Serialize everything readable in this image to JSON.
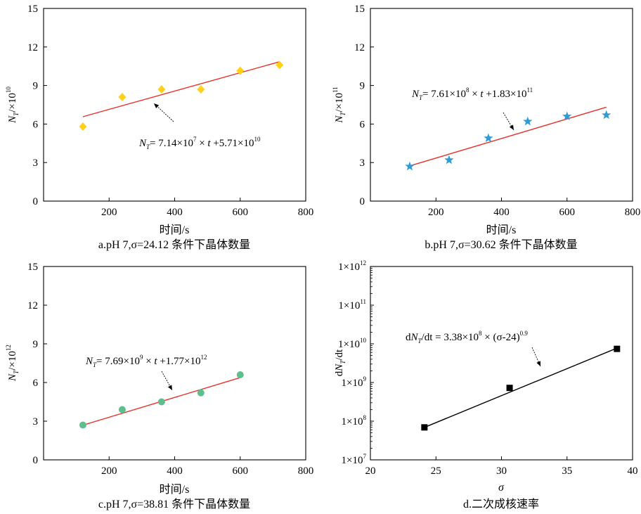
{
  "chart_data": [
    {
      "type": "scatter",
      "caption": "a.pH 7,σ=24.12 条件下晶体数量",
      "xlabel": "时间/s",
      "ylabel": {
        "base": "N",
        "sub": "T",
        "rest": "/×10",
        "sup": "10"
      },
      "xlim": [
        0,
        800
      ],
      "ylim": [
        0,
        15
      ],
      "xticks": [
        "200",
        "400",
        "600",
        "800"
      ],
      "yticks": [
        "0",
        "3",
        "6",
        "9",
        "12",
        "15"
      ],
      "series": [
        {
          "marker": "diamond",
          "color": "#FFD11A",
          "x": [
            120,
            240,
            360,
            480,
            600,
            720
          ],
          "y": [
            5.8,
            8.1,
            8.7,
            8.7,
            10.15,
            10.6
          ]
        }
      ],
      "fit": {
        "color": "#E8302A",
        "x": [
          120,
          720
        ],
        "y": [
          6.57,
          10.85
        ]
      },
      "equation": {
        "lhs": "N",
        "lhs_sub": "T",
        "p1": "= 7.14×10",
        "s1": "7",
        "p2": " × ",
        "var": "t",
        "p3": " +5.71×10",
        "s2": "10"
      }
    },
    {
      "type": "scatter",
      "caption": "b.pH 7,σ=30.62 条件下晶体数量",
      "xlabel": "时间/s",
      "ylabel": {
        "base": "N",
        "sub": "T",
        "rest": "/×10",
        "sup": "11"
      },
      "xlim": [
        0,
        800
      ],
      "ylim": [
        0,
        15
      ],
      "xticks": [
        "200",
        "400",
        "600",
        "800"
      ],
      "yticks": [
        "0",
        "3",
        "6",
        "9",
        "12",
        "15"
      ],
      "series": [
        {
          "marker": "star",
          "color": "#2E9CD6",
          "x": [
            120,
            240,
            360,
            480,
            600,
            720
          ],
          "y": [
            2.7,
            3.2,
            4.9,
            6.2,
            6.6,
            6.7
          ]
        }
      ],
      "fit": {
        "color": "#E8302A",
        "x": [
          120,
          720
        ],
        "y": [
          2.74,
          7.31
        ]
      },
      "equation": {
        "lhs": "N",
        "lhs_sub": "T",
        "p1": "= 7.61×10",
        "s1": "8",
        "p2": " × ",
        "var": "t",
        "p3": " +1.83×10",
        "s2": "11"
      }
    },
    {
      "type": "scatter",
      "caption": "c.pH 7,σ=38.81 条件下晶体数量",
      "xlabel": "时间/s",
      "ylabel": {
        "base": "N",
        "sub": "T",
        "rest": "/×10",
        "sup": "12"
      },
      "xlim": [
        0,
        800
      ],
      "ylim": [
        0,
        15
      ],
      "xticks": [
        "200",
        "400",
        "600",
        "800"
      ],
      "yticks": [
        "0",
        "3",
        "6",
        "9",
        "12",
        "15"
      ],
      "series": [
        {
          "marker": "circle",
          "color": "#5DBF8E",
          "x": [
            120,
            240,
            360,
            480,
            600
          ],
          "y": [
            2.7,
            3.9,
            4.5,
            5.2,
            6.6
          ]
        }
      ],
      "fit": {
        "color": "#E8302A",
        "x": [
          120,
          600
        ],
        "y": [
          2.69,
          6.38
        ]
      },
      "equation": {
        "lhs": "N",
        "lhs_sub": "T",
        "p1": "= 7.69×10",
        "s1": "9",
        "p2": " × ",
        "var": "t",
        "p3": " +1.77×10",
        "s2": "12"
      }
    },
    {
      "type": "scatter",
      "caption": "d.二次成核速率",
      "xlabel": "σ",
      "ylabel": {
        "base": "dN",
        "sub": "T",
        "rest": "/dt",
        "sup": ""
      },
      "xlim": [
        20,
        40
      ],
      "ylim": [
        7,
        12
      ],
      "yscale": "log",
      "xticks": [
        "20",
        "25",
        "30",
        "35",
        "40"
      ],
      "yticks": [
        {
          "base": "1×10",
          "sup": "7"
        },
        {
          "base": "1×10",
          "sup": "8"
        },
        {
          "base": "1×10",
          "sup": "9"
        },
        {
          "base": "1×10",
          "sup": "10"
        },
        {
          "base": "1×10",
          "sup": "11"
        },
        {
          "base": "1×10",
          "sup": "12"
        }
      ],
      "series": [
        {
          "marker": "square",
          "color": "#000000",
          "x": [
            24.12,
            30.62,
            38.81
          ],
          "y": [
            7.84,
            8.86,
            9.87
          ]
        }
      ],
      "fit": {
        "color": "#000000",
        "x": [
          24.12,
          38.81
        ],
        "y": [
          7.84,
          9.89
        ]
      },
      "equation": {
        "lhs": "dN",
        "lhs_sub": "T",
        "p1": "/dt = 3.38×10",
        "s1": "8",
        "p2": " × ",
        "var": "(σ-24)",
        "p3": "",
        "s2": "0.9"
      }
    }
  ]
}
